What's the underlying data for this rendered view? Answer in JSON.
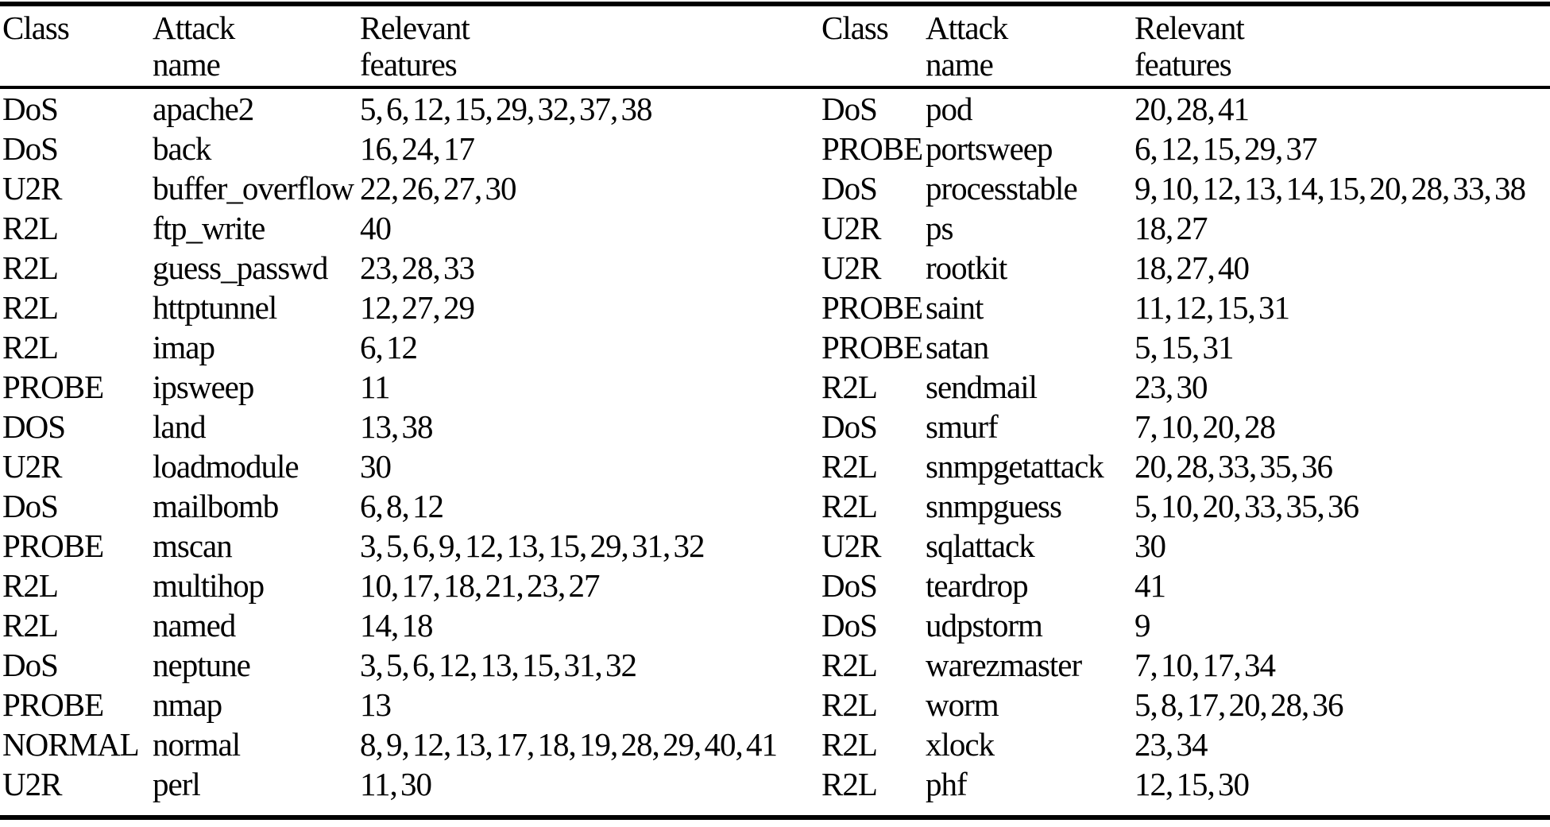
{
  "page": {
    "background_color": "#ffffff",
    "text_color": "#000000",
    "rule_color": "#000000"
  },
  "headers": {
    "class": "Class",
    "attack_line1": "Attack",
    "attack_line2": "name",
    "relevant_line1": "Relevant",
    "relevant_line2": "features"
  },
  "left_rows": [
    {
      "class": "DoS",
      "name": "apache2",
      "features": "5, 6, 12, 15, 29, 32, 37, 38"
    },
    {
      "class": "DoS",
      "name": "back",
      "features": "16, 24, 17"
    },
    {
      "class": "U2R",
      "name": "buffer_overflow",
      "features": "22, 26, 27, 30"
    },
    {
      "class": "R2L",
      "name": "ftp_write",
      "features": "40"
    },
    {
      "class": "R2L",
      "name": "guess_passwd",
      "features": "23, 28, 33"
    },
    {
      "class": "R2L",
      "name": "httptunnel",
      "features": "12, 27, 29"
    },
    {
      "class": "R2L",
      "name": "imap",
      "features": "6, 12"
    },
    {
      "class": "PROBE",
      "name": "ipsweep",
      "features": "11"
    },
    {
      "class": "DOS",
      "name": "land",
      "features": "13, 38"
    },
    {
      "class": "U2R",
      "name": "loadmodule",
      "features": "30"
    },
    {
      "class": "DoS",
      "name": "mailbomb",
      "features": "6, 8, 12"
    },
    {
      "class": "PROBE",
      "name": "mscan",
      "features": "3, 5, 6, 9, 12, 13, 15, 29, 31, 32"
    },
    {
      "class": "R2L",
      "name": "multihop",
      "features": "10, 17, 18, 21, 23, 27"
    },
    {
      "class": "R2L",
      "name": "named",
      "features": "14, 18"
    },
    {
      "class": "DoS",
      "name": "neptune",
      "features": "3, 5, 6, 12, 13, 15, 31, 32"
    },
    {
      "class": "PROBE",
      "name": "nmap",
      "features": "13"
    },
    {
      "class": "NORMAL",
      "name": "normal",
      "features": "8, 9, 12, 13, 17, 18, 19, 28, 29, 40, 41"
    },
    {
      "class": "U2R",
      "name": "perl",
      "features": "11, 30"
    }
  ],
  "right_rows": [
    {
      "class": "DoS",
      "name": "pod",
      "features": "20, 28, 41"
    },
    {
      "class": "PROBE",
      "name": "portsweep",
      "features": "6, 12, 15, 29, 37"
    },
    {
      "class": "DoS",
      "name": "processtable",
      "features": "9, 10, 12, 13, 14, 15, 20, 28, 33, 38"
    },
    {
      "class": "U2R",
      "name": "ps",
      "features": "18, 27"
    },
    {
      "class": "U2R",
      "name": "rootkit",
      "features": "18, 27, 40"
    },
    {
      "class": "PROBE",
      "name": "saint",
      "features": "11, 12, 15, 31"
    },
    {
      "class": "PROBE",
      "name": "satan",
      "features": "5, 15, 31"
    },
    {
      "class": "R2L",
      "name": "sendmail",
      "features": "23, 30"
    },
    {
      "class": "DoS",
      "name": "smurf",
      "features": "7, 10, 20, 28"
    },
    {
      "class": "R2L",
      "name": "snmpgetattack",
      "features": "20, 28, 33, 35, 36"
    },
    {
      "class": "R2L",
      "name": "snmpguess",
      "features": "5, 10, 20, 33, 35, 36"
    },
    {
      "class": "U2R",
      "name": "sqlattack",
      "features": "30"
    },
    {
      "class": "DoS",
      "name": "teardrop",
      "features": "41"
    },
    {
      "class": "DoS",
      "name": "udpstorm",
      "features": "9"
    },
    {
      "class": "R2L",
      "name": "warezmaster",
      "features": "7, 10, 17, 34"
    },
    {
      "class": "R2L",
      "name": "worm",
      "features": "5, 8, 17, 20, 28, 36"
    },
    {
      "class": "R2L",
      "name": "xlock",
      "features": "23, 34"
    },
    {
      "class": "R2L",
      "name": "phf",
      "features": "12, 15, 30"
    }
  ]
}
